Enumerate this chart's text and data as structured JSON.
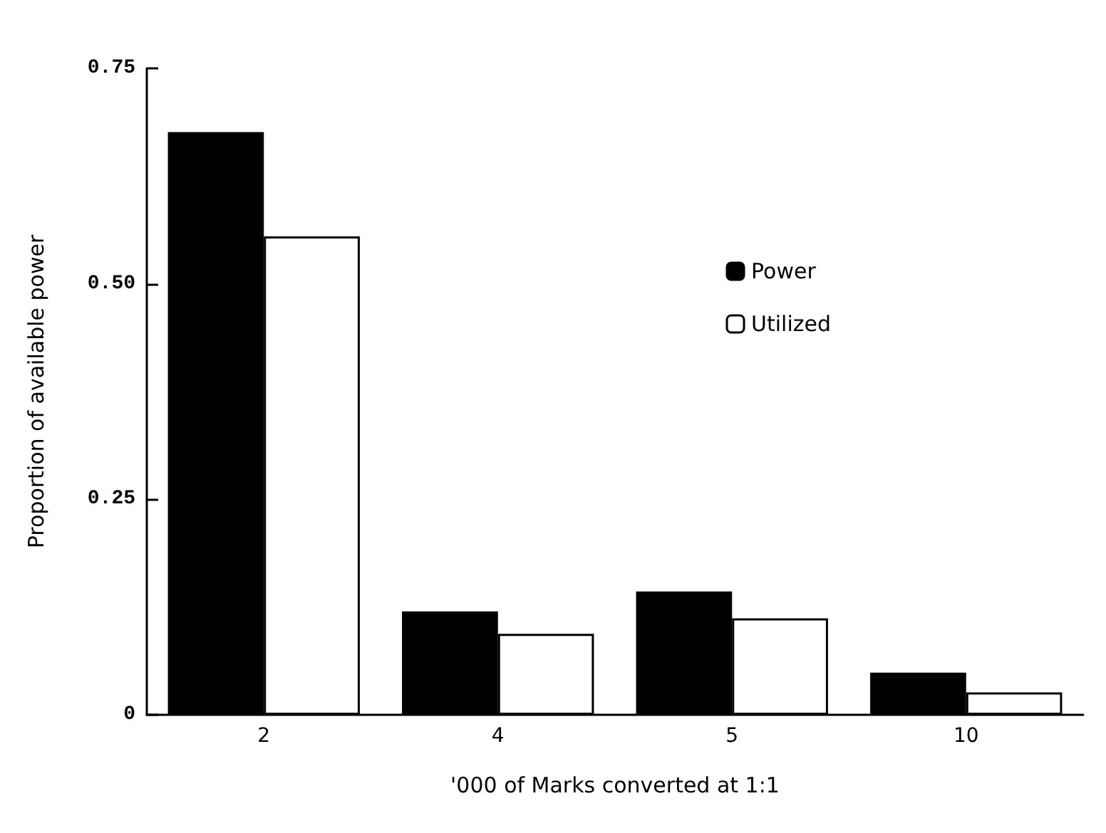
{
  "chart_data": {
    "type": "bar",
    "xlabel": "'000 of Marks converted at 1:1",
    "ylabel": "Proportion of available power",
    "categories": [
      "2",
      "4",
      "5",
      "10"
    ],
    "series": [
      {
        "name": "Power",
        "color": "#000000",
        "values": [
          0.676,
          0.12,
          0.143,
          0.049
        ]
      },
      {
        "name": "Utilized",
        "color": "#ffffff",
        "values": [
          0.555,
          0.094,
          0.112,
          0.026
        ]
      }
    ],
    "ylim": [
      0,
      0.75
    ],
    "yticks": [
      0,
      {
        "value": 0.25,
        "label": "0.25"
      },
      {
        "value": 0.5,
        "label": "0.50"
      },
      {
        "value": 0.75,
        "label": "0.75"
      }
    ],
    "grid": false,
    "legend": "top right"
  }
}
